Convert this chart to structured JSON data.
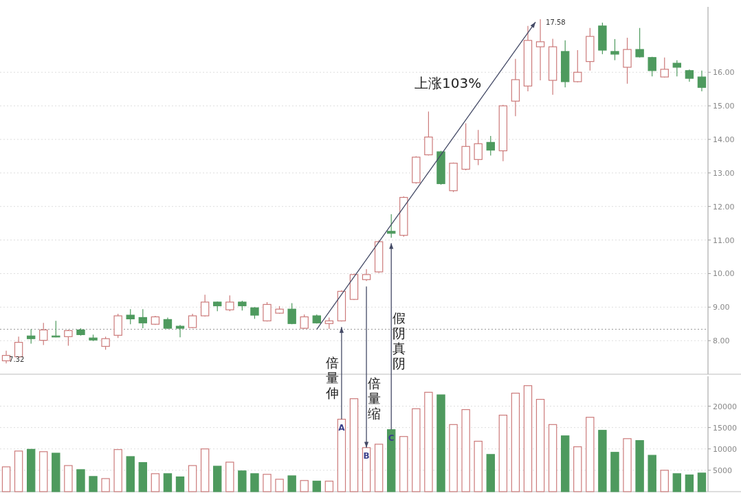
{
  "chart_data": [
    {
      "type": "candlestick",
      "categories": [
        null,
        null,
        null,
        null,
        null,
        null,
        null,
        null,
        null,
        null,
        null,
        null,
        null,
        null,
        null,
        null,
        null,
        null,
        null,
        null,
        null,
        null,
        null,
        null,
        null,
        null,
        null,
        null,
        null,
        null,
        null,
        null,
        null,
        null,
        null,
        null,
        null,
        null,
        null,
        null,
        null,
        null,
        null,
        null,
        null,
        null,
        null,
        null,
        null,
        null,
        null,
        null,
        null,
        null,
        null,
        null,
        null
      ],
      "ohlc": [
        [
          7.4,
          7.7,
          7.32,
          7.56
        ],
        [
          7.52,
          8.12,
          7.5,
          7.95
        ],
        [
          8.14,
          8.34,
          7.91,
          8.06
        ],
        [
          8.01,
          8.53,
          7.87,
          8.32
        ],
        [
          8.14,
          8.59,
          8.1,
          8.12
        ],
        [
          8.12,
          8.33,
          7.85,
          8.3
        ],
        [
          8.32,
          8.37,
          8.15,
          8.18
        ],
        [
          8.08,
          8.18,
          7.99,
          8.02
        ],
        [
          7.83,
          8.12,
          7.73,
          8.06
        ],
        [
          8.16,
          8.8,
          8.08,
          8.74
        ],
        [
          8.76,
          8.94,
          8.49,
          8.65
        ],
        [
          8.69,
          8.94,
          8.37,
          8.53
        ],
        [
          8.49,
          8.74,
          8.47,
          8.71
        ],
        [
          8.63,
          8.69,
          8.35,
          8.37
        ],
        [
          8.43,
          8.47,
          8.1,
          8.37
        ],
        [
          8.39,
          8.8,
          8.37,
          8.74
        ],
        [
          8.74,
          9.37,
          8.72,
          9.15
        ],
        [
          9.15,
          9.17,
          8.88,
          9.04
        ],
        [
          8.92,
          9.35,
          8.88,
          9.15
        ],
        [
          9.15,
          9.19,
          8.9,
          9.04
        ],
        [
          8.98,
          9.0,
          8.65,
          8.76
        ],
        [
          8.59,
          9.15,
          8.57,
          9.08
        ],
        [
          8.82,
          9.03,
          8.8,
          8.94
        ],
        [
          8.94,
          9.12,
          8.49,
          8.51
        ],
        [
          8.37,
          8.78,
          8.35,
          8.71
        ],
        [
          8.74,
          8.78,
          8.51,
          8.53
        ],
        [
          8.51,
          8.69,
          8.35,
          8.59
        ],
        [
          8.59,
          9.5,
          8.57,
          9.47
        ],
        [
          9.23,
          10.0,
          9.21,
          9.97
        ],
        [
          9.82,
          10.13,
          9.78,
          9.97
        ],
        [
          10.05,
          10.98,
          10.02,
          10.95
        ],
        [
          11.26,
          11.77,
          11.07,
          11.2
        ],
        [
          11.14,
          12.3,
          11.1,
          12.27
        ],
        [
          12.71,
          13.5,
          12.68,
          13.47
        ],
        [
          13.54,
          14.83,
          13.52,
          14.07
        ],
        [
          13.63,
          13.66,
          12.65,
          12.68
        ],
        [
          12.47,
          13.31,
          12.43,
          13.29
        ],
        [
          13.11,
          14.48,
          13.08,
          13.79
        ],
        [
          13.4,
          14.28,
          13.23,
          13.87
        ],
        [
          13.91,
          14.1,
          13.52,
          13.68
        ],
        [
          13.66,
          15.03,
          13.35,
          15.0
        ],
        [
          15.14,
          16.4,
          14.69,
          15.78
        ],
        [
          15.59,
          17.38,
          15.43,
          16.95
        ],
        [
          16.76,
          17.58,
          15.76,
          16.91
        ],
        [
          15.76,
          17.0,
          15.33,
          16.76
        ],
        [
          16.62,
          16.95,
          15.55,
          15.72
        ],
        [
          15.72,
          16.66,
          15.7,
          16.0
        ],
        [
          16.32,
          17.32,
          16.05,
          17.07
        ],
        [
          17.38,
          17.48,
          16.54,
          16.66
        ],
        [
          16.62,
          16.99,
          16.36,
          16.54
        ],
        [
          16.15,
          17.03,
          15.66,
          16.68
        ],
        [
          16.68,
          17.32,
          16.44,
          16.46
        ],
        [
          16.44,
          16.46,
          15.88,
          16.05
        ],
        [
          15.86,
          16.44,
          15.84,
          16.09
        ],
        [
          16.27,
          16.36,
          15.88,
          16.15
        ],
        [
          16.05,
          16.08,
          15.72,
          15.82
        ],
        [
          15.86,
          16.05,
          15.43,
          15.55
        ]
      ],
      "colors": [
        "#cc7a7a",
        "#cc7a7a",
        "#4e9a5e",
        "#cc7a7a",
        "#4e9a5e",
        "#cc7a7a",
        "#4e9a5e",
        "#4e9a5e",
        "#cc7a7a",
        "#cc7a7a",
        "#4e9a5e",
        "#4e9a5e",
        "#cc7a7a",
        "#4e9a5e",
        "#4e9a5e",
        "#cc7a7a",
        "#cc7a7a",
        "#4e9a5e",
        "#cc7a7a",
        "#4e9a5e",
        "#4e9a5e",
        "#cc7a7a",
        "#cc7a7a",
        "#4e9a5e",
        "#cc7a7a",
        "#4e9a5e",
        "#cc7a7a",
        "#cc7a7a",
        "#cc7a7a",
        "#cc7a7a",
        "#cc7a7a",
        "#4e9a5e",
        "#cc7a7a",
        "#cc7a7a",
        "#cc7a7a",
        "#4e9a5e",
        "#cc7a7a",
        "#cc7a7a",
        "#cc7a7a",
        "#4e9a5e",
        "#cc7a7a",
        "#cc7a7a",
        "#cc7a7a",
        "#cc7a7a",
        "#cc7a7a",
        "#4e9a5e",
        "#cc7a7a",
        "#cc7a7a",
        "#4e9a5e",
        "#4e9a5e",
        "#cc7a7a",
        "#4e9a5e",
        "#4e9a5e",
        "#cc7a7a",
        "#4e9a5e",
        "#4e9a5e",
        "#4e9a5e"
      ],
      "ylim": [
        7.0,
        17.95
      ],
      "yticks": [
        {
          "value": 8,
          "label": "8.00"
        },
        {
          "value": 9,
          "label": "9.00"
        },
        {
          "value": 10,
          "label": "10.00"
        },
        {
          "value": 11,
          "label": "11.00"
        },
        {
          "value": 12,
          "label": "12.00"
        },
        {
          "value": 13,
          "label": "13.00"
        },
        {
          "value": 14,
          "label": "14.00"
        },
        {
          "value": 15,
          "label": "15.00"
        },
        {
          "value": 16,
          "label": "16.00"
        }
      ],
      "grid": "y",
      "ref_lines": [
        {
          "axis": "y",
          "value": 8.34,
          "line_style": "dotted",
          "color": "#999999"
        }
      ],
      "annotations": [
        "上涨103%",
        "倍量伸",
        "倍量缩",
        "假阴真阴",
        "A",
        "B",
        "C",
        "17.58",
        "7.32"
      ]
    },
    {
      "type": "bar",
      "categories": [
        null,
        null,
        null,
        null,
        null,
        null,
        null,
        null,
        null,
        null,
        null,
        null,
        null,
        null,
        null,
        null,
        null,
        null,
        null,
        null,
        null,
        null,
        null,
        null,
        null,
        null,
        null,
        null,
        null,
        null,
        null,
        null,
        null,
        null,
        null,
        null,
        null,
        null,
        null,
        null,
        null,
        null,
        null,
        null,
        null,
        null,
        null,
        null,
        null,
        null,
        null,
        null,
        null,
        null,
        null,
        null,
        null
      ],
      "values": [
        5800,
        9500,
        9900,
        9350,
        9000,
        6100,
        5150,
        3550,
        3050,
        9850,
        8200,
        6800,
        4200,
        4200,
        3450,
        6100,
        10000,
        5950,
        6900,
        4850,
        4200,
        4050,
        2900,
        3700,
        2600,
        2450,
        2450,
        16950,
        21750,
        10300,
        11100,
        14500,
        12900,
        19400,
        23250,
        22650,
        15700,
        19200,
        11800,
        8700,
        17900,
        23050,
        24800,
        21600,
        15700,
        13050,
        10500,
        17400,
        14350,
        9200,
        12400,
        11950,
        8500,
        5000,
        4200,
        3900,
        4350
      ],
      "colors": [
        "#cc7a7a",
        "#cc7a7a",
        "#4e9a5e",
        "#cc7a7a",
        "#4e9a5e",
        "#cc7a7a",
        "#4e9a5e",
        "#4e9a5e",
        "#cc7a7a",
        "#cc7a7a",
        "#4e9a5e",
        "#4e9a5e",
        "#cc7a7a",
        "#4e9a5e",
        "#4e9a5e",
        "#cc7a7a",
        "#cc7a7a",
        "#4e9a5e",
        "#cc7a7a",
        "#4e9a5e",
        "#4e9a5e",
        "#cc7a7a",
        "#cc7a7a",
        "#4e9a5e",
        "#cc7a7a",
        "#4e9a5e",
        "#cc7a7a",
        "#cc7a7a",
        "#cc7a7a",
        "#cc7a7a",
        "#cc7a7a",
        "#4e9a5e",
        "#cc7a7a",
        "#cc7a7a",
        "#cc7a7a",
        "#4e9a5e",
        "#cc7a7a",
        "#cc7a7a",
        "#cc7a7a",
        "#4e9a5e",
        "#cc7a7a",
        "#cc7a7a",
        "#cc7a7a",
        "#cc7a7a",
        "#cc7a7a",
        "#4e9a5e",
        "#cc7a7a",
        "#cc7a7a",
        "#4e9a5e",
        "#4e9a5e",
        "#cc7a7a",
        "#4e9a5e",
        "#4e9a5e",
        "#cc7a7a",
        "#4e9a5e",
        "#4e9a5e",
        "#4e9a5e"
      ],
      "ylim": [
        0,
        27000
      ],
      "yticks": [
        5000,
        10000,
        15000,
        20000
      ],
      "grid": "y"
    }
  ]
}
